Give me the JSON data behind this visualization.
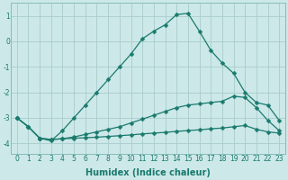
{
  "xlabel": "Humidex (Indice chaleur)",
  "ylabel": "",
  "xlim": [
    -0.5,
    23.5
  ],
  "ylim": [
    -4.4,
    1.5
  ],
  "background_color": "#cce8e8",
  "grid_color": "#aacccc",
  "line_color": "#1a7a6e",
  "lines": [
    {
      "x": [
        0,
        1,
        2,
        3,
        4,
        5,
        6,
        7,
        8,
        9,
        10,
        11,
        12,
        13,
        14,
        15,
        16,
        17,
        18,
        19,
        20,
        21,
        22,
        23
      ],
      "y": [
        -3.0,
        -3.35,
        -3.8,
        -3.9,
        -3.5,
        -3.0,
        -2.5,
        -2.0,
        -1.5,
        -1.0,
        -0.5,
        0.1,
        0.4,
        0.65,
        1.05,
        1.1,
        0.4,
        -0.35,
        -0.85,
        -1.25,
        -2.0,
        -2.4,
        -2.5,
        -3.1
      ],
      "marker": "D",
      "markersize": 2.5
    },
    {
      "x": [
        0,
        1,
        2,
        3,
        4,
        5,
        6,
        7,
        8,
        9,
        10,
        11,
        12,
        13,
        14,
        15,
        16,
        17,
        18,
        19,
        20,
        21,
        22,
        23
      ],
      "y": [
        -3.0,
        -3.35,
        -3.8,
        -3.85,
        -3.82,
        -3.75,
        -3.65,
        -3.55,
        -3.45,
        -3.35,
        -3.2,
        -3.05,
        -2.9,
        -2.75,
        -2.6,
        -2.5,
        -2.45,
        -2.4,
        -2.35,
        -2.15,
        -2.2,
        -2.6,
        -3.1,
        -3.5
      ],
      "marker": "D",
      "markersize": 2.5
    },
    {
      "x": [
        0,
        1,
        2,
        3,
        4,
        5,
        6,
        7,
        8,
        9,
        10,
        11,
        12,
        13,
        14,
        15,
        16,
        17,
        18,
        19,
        20,
        21,
        22,
        23
      ],
      "y": [
        -3.0,
        -3.35,
        -3.8,
        -3.85,
        -3.82,
        -3.8,
        -3.78,
        -3.76,
        -3.73,
        -3.7,
        -3.67,
        -3.63,
        -3.6,
        -3.57,
        -3.53,
        -3.5,
        -3.47,
        -3.43,
        -3.4,
        -3.35,
        -3.3,
        -3.45,
        -3.55,
        -3.6
      ],
      "marker": "D",
      "markersize": 2.5
    }
  ],
  "xticks": [
    0,
    1,
    2,
    3,
    4,
    5,
    6,
    7,
    8,
    9,
    10,
    11,
    12,
    13,
    14,
    15,
    16,
    17,
    18,
    19,
    20,
    21,
    22,
    23
  ],
  "yticks": [
    -4,
    -3,
    -2,
    -1,
    0,
    1
  ],
  "tick_fontsize": 5.5,
  "label_fontsize": 7.0
}
